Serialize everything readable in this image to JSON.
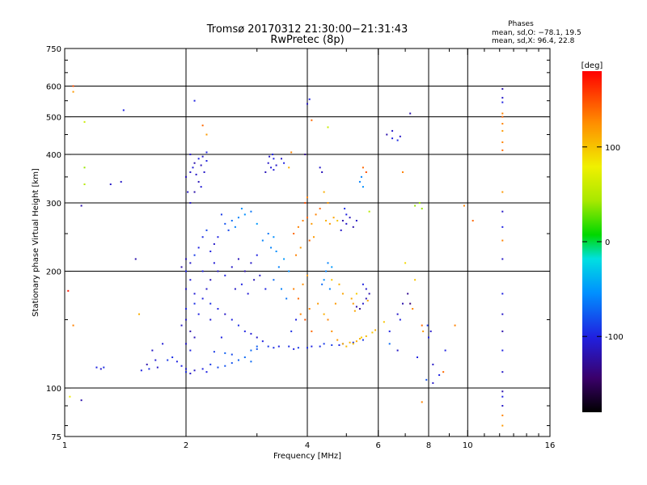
{
  "header": {
    "title_line1": "Tromsø 20170312 21:30:00−21:31:43",
    "title_line2": "RwPretec (8p)"
  },
  "stats": {
    "heading": "Phases",
    "line_o": "mean, sd,O: −78.1, 19.5",
    "line_x": "mean, sd,X:  96.4, 22.8"
  },
  "colorbar": {
    "unit_label": "[deg]",
    "ticks": [
      {
        "value": 100,
        "label": "100"
      },
      {
        "value": 0,
        "label": "0"
      },
      {
        "value": -100,
        "label": "-100"
      }
    ],
    "range": [
      -180,
      180
    ]
  },
  "chart_data": {
    "type": "scatter",
    "title": "Tromsø 20170312 21:30:00−21:31:43",
    "subtitle": "RwPretec (8p)",
    "xlabel": "Frequency [MHz]",
    "ylabel": "Stationary phase Virtual Height [km]",
    "xscale": "log",
    "yscale": "log",
    "xlim": [
      1,
      16
    ],
    "ylim": [
      75,
      750
    ],
    "xticks": [
      {
        "value": 1,
        "label": "1"
      },
      {
        "value": 2,
        "label": "2"
      },
      {
        "value": 4,
        "label": "4"
      },
      {
        "value": 6,
        "label": "6"
      },
      {
        "value": 8,
        "label": "8"
      },
      {
        "value": 10,
        "label": "10"
      },
      {
        "value": 16,
        "label": "16"
      }
    ],
    "xminor": [
      3,
      5,
      7,
      9,
      11,
      12,
      13,
      14,
      15
    ],
    "xgrid": [
      2,
      4,
      6,
      8,
      10
    ],
    "yticks": [
      {
        "value": 75,
        "label": "75"
      },
      {
        "value": 100,
        "label": "100"
      },
      {
        "value": 200,
        "label": "200"
      },
      {
        "value": 300,
        "label": "300"
      },
      {
        "value": 400,
        "label": "400"
      },
      {
        "value": 500,
        "label": "500"
      },
      {
        "value": 600,
        "label": "600"
      },
      {
        "value": 750,
        "label": "750"
      }
    ],
    "yminor": [
      80,
      90,
      150,
      250,
      350,
      450,
      550,
      650,
      700
    ],
    "ygrid": [
      100,
      200,
      300,
      400,
      500,
      600
    ],
    "grid": true,
    "points": [
      [
        1.05,
        600,
        150
      ],
      [
        1.05,
        580,
        120
      ],
      [
        1.12,
        485,
        60
      ],
      [
        1.12,
        370,
        40
      ],
      [
        1.12,
        335,
        50
      ],
      [
        1.1,
        295,
        -120
      ],
      [
        1.4,
        520,
        -100
      ],
      [
        1.3,
        335,
        -110
      ],
      [
        1.38,
        340,
        -110
      ],
      [
        1.5,
        215,
        -120
      ],
      [
        1.53,
        155,
        110
      ],
      [
        1.05,
        145,
        130
      ],
      [
        1.02,
        178,
        170
      ],
      [
        1.03,
        95,
        80
      ],
      [
        1.1,
        93,
        -120
      ],
      [
        1.2,
        113,
        -100
      ],
      [
        1.25,
        113,
        -95
      ],
      [
        1.23,
        112,
        -110
      ],
      [
        1.55,
        111,
        -100
      ],
      [
        1.62,
        112,
        -95
      ],
      [
        1.7,
        113,
        -110
      ],
      [
        1.8,
        118,
        -90
      ],
      [
        1.9,
        117,
        -100
      ],
      [
        2.0,
        110,
        -95
      ],
      [
        2.1,
        111,
        -110
      ],
      [
        2.2,
        112,
        -100
      ],
      [
        2.4,
        113,
        -85
      ],
      [
        2.6,
        116,
        -80
      ],
      [
        2.8,
        120,
        -70
      ],
      [
        2.0,
        112,
        -105
      ],
      [
        1.65,
        125,
        -110
      ],
      [
        1.75,
        130,
        -105
      ],
      [
        1.85,
        120,
        -95
      ],
      [
        1.95,
        114,
        -100
      ],
      [
        2.05,
        109,
        -110
      ],
      [
        2.3,
        115,
        -90
      ],
      [
        2.5,
        114,
        -80
      ],
      [
        2.7,
        118,
        -75
      ],
      [
        2.9,
        117,
        -70
      ],
      [
        2.25,
        110,
        -100
      ],
      [
        1.6,
        115,
        -120
      ],
      [
        1.68,
        118,
        -105
      ],
      [
        2.9,
        125,
        -70
      ],
      [
        3.0,
        128,
        -75
      ],
      [
        3.2,
        128,
        -90
      ],
      [
        3.4,
        128,
        -100
      ],
      [
        3.6,
        128,
        -95
      ],
      [
        3.8,
        127,
        -90
      ],
      [
        4.1,
        128,
        -100
      ],
      [
        4.3,
        128,
        -95
      ],
      [
        4.6,
        129,
        -90
      ],
      [
        4.9,
        130,
        -100
      ],
      [
        5.2,
        131,
        -95
      ],
      [
        5.5,
        133,
        -90
      ],
      [
        3.0,
        126,
        -80
      ],
      [
        3.3,
        127,
        -95
      ],
      [
        3.7,
        126,
        -100
      ],
      [
        4.0,
        127,
        -95
      ],
      [
        4.4,
        130,
        -90
      ],
      [
        4.8,
        129,
        -100
      ],
      [
        2.5,
        123,
        -75
      ],
      [
        2.6,
        122,
        -85
      ],
      [
        2.35,
        124,
        -90
      ],
      [
        2.45,
        135,
        -100
      ],
      [
        4.9,
        130,
        110
      ],
      [
        5.0,
        128,
        105
      ],
      [
        5.1,
        131,
        108
      ],
      [
        5.2,
        130,
        100
      ],
      [
        5.3,
        132,
        112
      ],
      [
        5.4,
        134,
        106
      ],
      [
        5.6,
        136,
        104
      ],
      [
        5.8,
        139,
        100
      ],
      [
        5.9,
        141,
        110
      ],
      [
        4.75,
        133,
        120
      ],
      [
        5.45,
        135,
        98
      ],
      [
        5.2,
        165,
        120
      ],
      [
        5.3,
        162,
        -120
      ],
      [
        5.4,
        160,
        -130
      ],
      [
        5.5,
        165,
        -110
      ],
      [
        5.6,
        170,
        -115
      ],
      [
        5.7,
        175,
        -120
      ],
      [
        5.6,
        180,
        -110
      ],
      [
        5.5,
        185,
        -100
      ],
      [
        5.65,
        168,
        115
      ],
      [
        5.3,
        175,
        95
      ],
      [
        5.25,
        158,
        115
      ],
      [
        5.15,
        170,
        112
      ],
      [
        4.9,
        175,
        115
      ],
      [
        4.8,
        185,
        110
      ],
      [
        4.6,
        190,
        100
      ],
      [
        4.7,
        165,
        120
      ],
      [
        4.5,
        150,
        130
      ],
      [
        4.6,
        140,
        125
      ],
      [
        4.1,
        140,
        140
      ],
      [
        3.95,
        150,
        150
      ],
      [
        3.85,
        155,
        130
      ],
      [
        4.25,
        165,
        120
      ],
      [
        4.4,
        155,
        110
      ],
      [
        4.05,
        160,
        130
      ],
      [
        3.8,
        170,
        140
      ],
      [
        3.7,
        180,
        130
      ],
      [
        3.9,
        185,
        125
      ],
      [
        4.0,
        195,
        120
      ],
      [
        3.75,
        150,
        -100
      ],
      [
        3.65,
        140,
        -95
      ],
      [
        4.45,
        200,
        -60
      ],
      [
        4.6,
        205,
        -50
      ],
      [
        4.5,
        210,
        -60
      ],
      [
        4.4,
        190,
        -55
      ],
      [
        4.55,
        180,
        -60
      ],
      [
        4.35,
        185,
        -70
      ],
      [
        3.3,
        190,
        -70
      ],
      [
        3.4,
        205,
        -60
      ],
      [
        3.5,
        215,
        -50
      ],
      [
        3.6,
        200,
        -55
      ],
      [
        3.45,
        180,
        -60
      ],
      [
        3.55,
        170,
        -65
      ],
      [
        3.1,
        240,
        -60
      ],
      [
        3.2,
        250,
        -65
      ],
      [
        3.3,
        245,
        -55
      ],
      [
        3.0,
        265,
        -50
      ],
      [
        3.25,
        230,
        -60
      ],
      [
        3.35,
        225,
        -55
      ],
      [
        2.6,
        270,
        -70
      ],
      [
        2.7,
        275,
        -60
      ],
      [
        2.8,
        280,
        -55
      ],
      [
        2.9,
        285,
        -65
      ],
      [
        2.65,
        260,
        -60
      ],
      [
        2.75,
        290,
        -55
      ],
      [
        2.5,
        265,
        -80
      ],
      [
        2.45,
        280,
        -90
      ],
      [
        2.55,
        255,
        -85
      ],
      [
        2.4,
        245,
        -100
      ],
      [
        2.35,
        235,
        -110
      ],
      [
        2.3,
        225,
        -100
      ],
      [
        2.1,
        220,
        -90
      ],
      [
        2.15,
        230,
        -100
      ],
      [
        2.2,
        245,
        -95
      ],
      [
        2.25,
        255,
        -85
      ],
      [
        2.05,
        210,
        -110
      ],
      [
        2.0,
        200,
        -100
      ],
      [
        2.0,
        180,
        -110
      ],
      [
        2.1,
        175,
        -105
      ],
      [
        2.2,
        170,
        -100
      ],
      [
        2.3,
        165,
        -95
      ],
      [
        2.4,
        160,
        -100
      ],
      [
        2.5,
        155,
        -110
      ],
      [
        2.6,
        150,
        -100
      ],
      [
        2.7,
        145,
        -95
      ],
      [
        2.8,
        140,
        -100
      ],
      [
        2.9,
        138,
        -105
      ],
      [
        3.0,
        135,
        -110
      ],
      [
        3.1,
        132,
        -100
      ],
      [
        2.0,
        150,
        -110
      ],
      [
        2.05,
        140,
        -120
      ],
      [
        2.1,
        135,
        -115
      ],
      [
        2.0,
        130,
        -110
      ],
      [
        2.05,
        125,
        -100
      ],
      [
        1.95,
        145,
        -110
      ],
      [
        2.0,
        160,
        -100
      ],
      [
        2.05,
        190,
        -105
      ],
      [
        1.95,
        205,
        -120
      ],
      [
        2.0,
        215,
        -115
      ],
      [
        2.1,
        165,
        -95
      ],
      [
        2.15,
        155,
        -100
      ],
      [
        2.65,
        180,
        -110
      ],
      [
        2.75,
        185,
        -100
      ],
      [
        2.85,
        175,
        -105
      ],
      [
        2.95,
        190,
        -115
      ],
      [
        3.05,
        195,
        -110
      ],
      [
        3.15,
        180,
        -100
      ],
      [
        2.8,
        200,
        -120
      ],
      [
        2.9,
        210,
        -110
      ],
      [
        3.0,
        220,
        -100
      ],
      [
        2.7,
        215,
        -115
      ],
      [
        2.6,
        205,
        -110
      ],
      [
        2.5,
        195,
        -100
      ],
      [
        2.3,
        190,
        -115
      ],
      [
        2.4,
        200,
        -110
      ],
      [
        2.35,
        210,
        -105
      ],
      [
        2.25,
        180,
        -110
      ],
      [
        2.2,
        200,
        -100
      ],
      [
        2.3,
        150,
        -105
      ],
      [
        2.05,
        300,
        -110
      ],
      [
        2.1,
        320,
        -120
      ],
      [
        2.15,
        340,
        -115
      ],
      [
        2.05,
        360,
        -110
      ],
      [
        2.1,
        380,
        -120
      ],
      [
        2.15,
        390,
        -100
      ],
      [
        2.2,
        395,
        -110
      ],
      [
        2.25,
        385,
        -100
      ],
      [
        2.0,
        350,
        -115
      ],
      [
        2.08,
        370,
        -105
      ],
      [
        2.12,
        355,
        -110
      ],
      [
        2.18,
        375,
        -115
      ],
      [
        2.05,
        400,
        -110
      ],
      [
        2.25,
        405,
        -100
      ],
      [
        2.18,
        330,
        -105
      ],
      [
        2.02,
        320,
        -110
      ],
      [
        2.22,
        360,
        -110
      ],
      [
        3.2,
        380,
        -110
      ],
      [
        3.3,
        390,
        -100
      ],
      [
        3.25,
        370,
        -105
      ],
      [
        3.35,
        375,
        -110
      ],
      [
        3.15,
        360,
        -115
      ],
      [
        3.28,
        400,
        -100
      ],
      [
        3.22,
        395,
        -110
      ],
      [
        3.3,
        365,
        -105
      ],
      [
        3.6,
        370,
        110
      ],
      [
        3.9,
        270,
        130
      ],
      [
        4.0,
        275,
        140
      ],
      [
        4.1,
        265,
        120
      ],
      [
        4.2,
        280,
        130
      ],
      [
        4.3,
        290,
        140
      ],
      [
        4.45,
        270,
        110
      ],
      [
        4.55,
        265,
        120
      ],
      [
        4.65,
        275,
        115
      ],
      [
        4.75,
        270,
        100
      ],
      [
        3.8,
        260,
        130
      ],
      [
        3.7,
        250,
        140
      ],
      [
        3.95,
        300,
        150
      ],
      [
        4.0,
        310,
        130
      ],
      [
        4.05,
        240,
        140
      ],
      [
        4.15,
        245,
        120
      ],
      [
        3.85,
        230,
        120
      ],
      [
        3.75,
        220,
        130
      ],
      [
        4.4,
        320,
        110
      ],
      [
        4.5,
        300,
        120
      ],
      [
        4.9,
        270,
        -120
      ],
      [
        5.0,
        265,
        -110
      ],
      [
        5.1,
        275,
        -115
      ],
      [
        5.2,
        260,
        -120
      ],
      [
        5.0,
        280,
        -100
      ],
      [
        4.85,
        255,
        -110
      ],
      [
        5.3,
        270,
        -110
      ],
      [
        4.95,
        290,
        -95
      ],
      [
        5.4,
        340,
        -60
      ],
      [
        5.5,
        330,
        -55
      ],
      [
        5.45,
        350,
        -60
      ],
      [
        5.6,
        360,
        150
      ],
      [
        5.5,
        370,
        140
      ],
      [
        5.7,
        285,
        50
      ],
      [
        4.1,
        490,
        140
      ],
      [
        4.0,
        540,
        -110
      ],
      [
        4.05,
        555,
        -100
      ],
      [
        3.95,
        400,
        -130
      ],
      [
        4.5,
        470,
        60
      ],
      [
        4.3,
        370,
        -110
      ],
      [
        4.35,
        360,
        -115
      ],
      [
        3.5,
        380,
        -100
      ],
      [
        3.45,
        390,
        -110
      ],
      [
        2.1,
        550,
        -100
      ],
      [
        2.25,
        450,
        120
      ],
      [
        2.2,
        475,
        140
      ],
      [
        3.65,
        405,
        130
      ],
      [
        6.3,
        450,
        -120
      ],
      [
        6.5,
        460,
        -110
      ],
      [
        6.8,
        445,
        -110
      ],
      [
        6.7,
        435,
        -95
      ],
      [
        6.5,
        440,
        -100
      ],
      [
        7.2,
        510,
        -120
      ],
      [
        6.9,
        360,
        130
      ],
      [
        7.4,
        295,
        40
      ],
      [
        7.6,
        300,
        40
      ],
      [
        7.7,
        290,
        40
      ],
      [
        7.0,
        210,
        90
      ],
      [
        7.4,
        190,
        100
      ],
      [
        7.1,
        175,
        -130
      ],
      [
        7.2,
        165,
        -140
      ],
      [
        6.9,
        165,
        -120
      ],
      [
        7.3,
        160,
        130
      ],
      [
        6.7,
        155,
        -110
      ],
      [
        6.8,
        150,
        -100
      ],
      [
        6.4,
        140,
        -100
      ],
      [
        6.2,
        148,
        100
      ],
      [
        7.7,
        145,
        140
      ],
      [
        7.75,
        140,
        120
      ],
      [
        8.1,
        140,
        -110
      ],
      [
        8.0,
        135,
        -100
      ],
      [
        7.95,
        145,
        -90
      ],
      [
        8.8,
        125,
        -100
      ],
      [
        6.4,
        130,
        -70
      ],
      [
        6.7,
        125,
        -110
      ],
      [
        7.5,
        120,
        -100
      ],
      [
        8.2,
        115,
        -110
      ],
      [
        8.5,
        108,
        -100
      ],
      [
        7.9,
        105,
        -80
      ],
      [
        8.2,
        103,
        -110
      ],
      [
        8.7,
        110,
        140
      ],
      [
        7.7,
        92,
        130
      ],
      [
        9.8,
        295,
        130
      ],
      [
        10.3,
        270,
        140
      ],
      [
        9.3,
        145,
        130
      ],
      [
        12.2,
        590,
        -120
      ],
      [
        12.2,
        560,
        -110
      ],
      [
        12.2,
        545,
        -100
      ],
      [
        12.2,
        510,
        130
      ],
      [
        12.2,
        500,
        140
      ],
      [
        12.2,
        480,
        130
      ],
      [
        12.2,
        460,
        120
      ],
      [
        12.2,
        430,
        130
      ],
      [
        12.2,
        410,
        140
      ],
      [
        12.2,
        320,
        120
      ],
      [
        12.2,
        285,
        -110
      ],
      [
        12.2,
        260,
        -100
      ],
      [
        12.2,
        240,
        130
      ],
      [
        12.2,
        215,
        -110
      ],
      [
        12.2,
        175,
        -100
      ],
      [
        12.2,
        155,
        -110
      ],
      [
        12.2,
        140,
        -120
      ],
      [
        12.2,
        125,
        -100
      ],
      [
        12.2,
        110,
        -110
      ],
      [
        12.2,
        98,
        -120
      ],
      [
        12.2,
        95,
        -100
      ],
      [
        12.2,
        90,
        -110
      ],
      [
        12.2,
        85,
        130
      ],
      [
        12.2,
        80,
        120
      ]
    ]
  }
}
